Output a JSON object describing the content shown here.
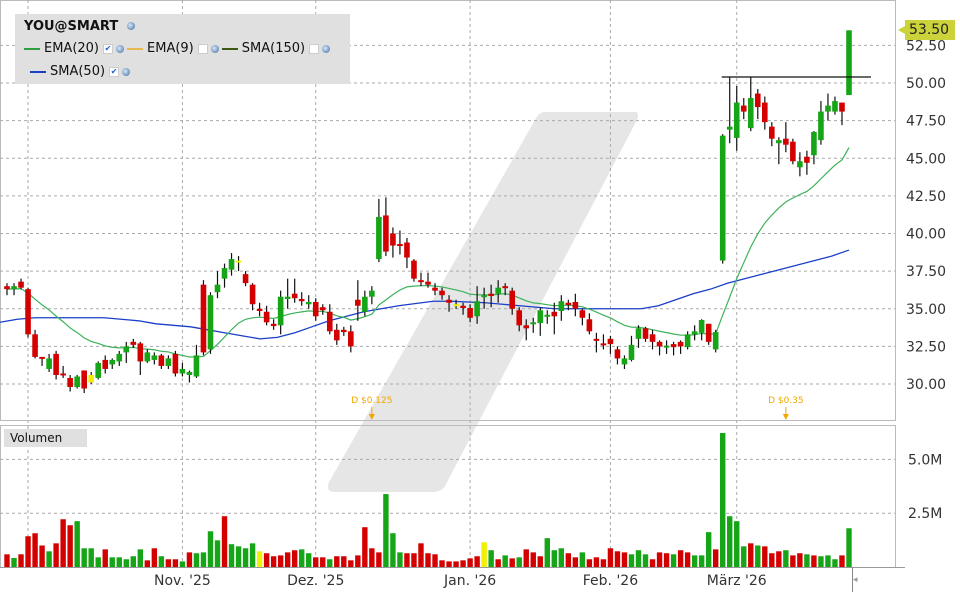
{
  "symbol": "YOU@SMART",
  "legend": [
    {
      "label": "EMA(20)",
      "color": "#2ea043",
      "checked": true
    },
    {
      "label": "EMA(9)",
      "color": "#e8b850",
      "checked": false
    },
    {
      "label": "SMA(150)",
      "color": "#3a5a10",
      "checked": false
    },
    {
      "label": "SMA(50)",
      "color": "#1a3fc8",
      "checked": true
    }
  ],
  "volume_label": "Volumen",
  "last_price_label": "53.50",
  "colors": {
    "up": "#16a516",
    "down": "#d40000",
    "neutral": "#f0f000",
    "ema20": "#3cb25a",
    "sma50": "#1a3fc8",
    "dividend": "#f0a800"
  },
  "chart_data": {
    "type": "candlestick",
    "price_axis": {
      "ylim": [
        28,
        56
      ],
      "ticks": [
        "30.00",
        "32.50",
        "35.00",
        "37.50",
        "40.00",
        "42.50",
        "45.00",
        "47.50",
        "50.00",
        "52.50"
      ],
      "grid": true
    },
    "volume_axis": {
      "ylim": [
        0,
        6.6
      ],
      "ticks": [
        "2.5M",
        "5.0M"
      ],
      "unit": "M"
    },
    "x_tick_labels": [
      "Nov. '25",
      "Dez. '25",
      "Jan. '26",
      "Feb. '26",
      "März '26"
    ],
    "ohlc": [
      [
        36.5,
        36.7,
        35.9,
        36.3
      ],
      [
        36.3,
        36.7,
        35.9,
        36.5
      ],
      [
        36.8,
        37.0,
        36.3,
        36.4
      ],
      [
        36.3,
        36.4,
        33.1,
        33.3
      ],
      [
        33.3,
        33.6,
        31.7,
        31.8
      ],
      [
        31.8,
        31.8,
        31.2,
        31.7
      ],
      [
        31.0,
        32.0,
        30.8,
        31.7
      ],
      [
        32.0,
        32.2,
        30.3,
        30.6
      ],
      [
        30.7,
        31.2,
        30.4,
        30.6
      ],
      [
        30.4,
        30.6,
        29.5,
        29.8
      ],
      [
        29.8,
        30.6,
        29.7,
        30.5
      ],
      [
        30.9,
        30.9,
        29.4,
        29.7
      ],
      [
        30.1,
        30.8,
        30.0,
        30.6
      ],
      [
        30.4,
        31.5,
        30.3,
        31.4
      ],
      [
        31.6,
        31.9,
        30.7,
        31.0
      ],
      [
        31.3,
        31.7,
        31.0,
        31.6
      ],
      [
        31.5,
        32.2,
        31.2,
        32.0
      ],
      [
        32.1,
        32.8,
        31.4,
        32.5
      ],
      [
        32.8,
        33.0,
        32.4,
        32.6
      ],
      [
        32.7,
        32.8,
        30.6,
        31.5
      ],
      [
        31.5,
        32.3,
        31.4,
        32.1
      ],
      [
        31.6,
        32.1,
        31.3,
        31.9
      ],
      [
        31.9,
        32.0,
        31.0,
        31.2
      ],
      [
        31.2,
        31.9,
        31.0,
        31.7
      ],
      [
        32.0,
        32.2,
        30.5,
        30.7
      ],
      [
        30.7,
        31.4,
        30.5,
        31.0
      ],
      [
        30.6,
        30.9,
        30.1,
        30.8
      ],
      [
        30.5,
        32.6,
        30.4,
        31.9
      ],
      [
        36.6,
        36.9,
        31.9,
        32.1
      ],
      [
        32.3,
        36.1,
        32.0,
        35.9
      ],
      [
        36.1,
        37.5,
        35.7,
        36.6
      ],
      [
        37.0,
        38.0,
        36.4,
        37.7
      ],
      [
        37.6,
        38.7,
        37.2,
        38.3
      ],
      [
        38.2,
        38.5,
        37.5,
        38.2
      ],
      [
        37.3,
        37.5,
        36.5,
        36.7
      ],
      [
        36.6,
        36.7,
        34.9,
        35.3
      ],
      [
        35.0,
        35.4,
        34.5,
        34.85
      ],
      [
        34.8,
        35.2,
        33.9,
        34.1
      ],
      [
        34.0,
        34.3,
        33.6,
        33.85
      ],
      [
        33.9,
        36.2,
        33.3,
        35.8
      ],
      [
        35.65,
        37.0,
        35.0,
        35.8
      ],
      [
        36.0,
        37.0,
        35.4,
        35.7
      ],
      [
        35.65,
        36.1,
        35.2,
        35.5
      ],
      [
        35.3,
        35.9,
        35.0,
        35.45
      ],
      [
        35.45,
        35.7,
        34.2,
        34.5
      ],
      [
        35.1,
        35.3,
        34.6,
        34.9
      ],
      [
        34.8,
        35.3,
        33.3,
        33.5
      ],
      [
        33.6,
        34.0,
        32.6,
        32.9
      ],
      [
        33.6,
        33.8,
        33.2,
        33.45
      ],
      [
        33.5,
        33.9,
        32.1,
        32.5
      ],
      [
        35.6,
        36.9,
        34.2,
        35.2
      ],
      [
        34.8,
        36.2,
        34.5,
        35.8
      ],
      [
        35.8,
        36.5,
        35.3,
        36.2
      ],
      [
        38.3,
        42.3,
        38.1,
        41.1
      ],
      [
        41.2,
        42.4,
        38.5,
        38.8
      ],
      [
        40.0,
        40.4,
        38.4,
        39.2
      ],
      [
        39.3,
        40.2,
        38.6,
        39.2
      ],
      [
        39.4,
        39.7,
        37.7,
        38.4
      ],
      [
        38.2,
        38.3,
        36.8,
        37.0
      ],
      [
        36.9,
        37.4,
        36.5,
        36.8
      ],
      [
        36.8,
        37.4,
        36.4,
        36.6
      ],
      [
        36.4,
        36.7,
        35.9,
        36.2
      ],
      [
        36.2,
        36.4,
        35.6,
        35.9
      ],
      [
        35.6,
        35.9,
        34.8,
        35.4
      ],
      [
        35.3,
        35.6,
        35.0,
        35.3
      ],
      [
        35.2,
        35.4,
        34.6,
        35.05
      ],
      [
        35.05,
        35.3,
        34.1,
        34.4
      ],
      [
        34.5,
        36.5,
        34.0,
        35.5
      ],
      [
        35.8,
        36.4,
        35.0,
        35.9
      ],
      [
        36.0,
        36.6,
        35.1,
        35.85
      ],
      [
        36.0,
        36.9,
        35.4,
        36.4
      ],
      [
        36.5,
        36.7,
        35.9,
        36.4
      ],
      [
        36.2,
        36.4,
        34.6,
        35.0
      ],
      [
        34.9,
        35.1,
        33.5,
        33.9
      ],
      [
        33.9,
        34.3,
        32.9,
        33.7
      ],
      [
        34.0,
        34.4,
        33.4,
        34.1
      ],
      [
        34.05,
        35.1,
        33.2,
        34.9
      ],
      [
        34.5,
        34.9,
        34.0,
        34.6
      ],
      [
        34.8,
        35.4,
        33.3,
        34.5
      ],
      [
        34.85,
        35.9,
        34.2,
        35.5
      ],
      [
        35.4,
        35.6,
        34.9,
        35.25
      ],
      [
        35.45,
        36.0,
        34.5,
        35.0
      ],
      [
        34.9,
        35.0,
        33.9,
        34.4
      ],
      [
        34.3,
        34.7,
        33.3,
        33.5
      ],
      [
        33.0,
        33.4,
        32.1,
        32.9
      ],
      [
        32.7,
        33.3,
        32.3,
        32.6
      ],
      [
        33.0,
        33.2,
        32.0,
        32.65
      ],
      [
        32.3,
        32.5,
        31.3,
        31.7
      ],
      [
        31.3,
        31.9,
        31.0,
        31.7
      ],
      [
        31.6,
        33.2,
        31.5,
        32.6
      ],
      [
        33.0,
        33.9,
        32.4,
        33.7
      ],
      [
        33.7,
        33.8,
        32.8,
        33.0
      ],
      [
        33.3,
        33.6,
        32.3,
        32.8
      ],
      [
        32.8,
        32.9,
        31.9,
        32.5
      ],
      [
        32.45,
        32.9,
        32.0,
        32.55
      ],
      [
        32.65,
        32.8,
        31.9,
        32.45
      ],
      [
        32.8,
        32.9,
        32.0,
        32.5
      ],
      [
        32.45,
        33.5,
        32.3,
        33.3
      ],
      [
        33.3,
        33.9,
        32.9,
        33.5
      ],
      [
        33.4,
        34.3,
        32.9,
        34.25
      ],
      [
        34.0,
        34.0,
        32.6,
        32.8
      ],
      [
        32.3,
        33.6,
        32.1,
        33.45
      ],
      [
        38.2,
        46.6,
        38.0,
        46.5
      ],
      [
        46.9,
        50.4,
        46.0,
        47.1
      ],
      [
        46.35,
        49.8,
        45.5,
        48.7
      ],
      [
        48.5,
        49.0,
        47.6,
        48.1
      ],
      [
        47.0,
        50.4,
        46.8,
        49.0
      ],
      [
        49.3,
        49.6,
        47.6,
        48.4
      ],
      [
        48.7,
        49.1,
        46.9,
        47.4
      ],
      [
        47.1,
        47.4,
        45.8,
        46.3
      ],
      [
        46.0,
        46.4,
        44.6,
        46.2
      ],
      [
        46.3,
        47.4,
        45.4,
        45.9
      ],
      [
        46.1,
        46.3,
        44.6,
        44.8
      ],
      [
        44.4,
        45.4,
        43.8,
        44.8
      ],
      [
        45.1,
        45.5,
        43.9,
        44.7
      ],
      [
        45.2,
        46.8,
        44.6,
        46.75
      ],
      [
        46.2,
        48.8,
        45.9,
        48.1
      ],
      [
        48.1,
        49.3,
        47.5,
        48.5
      ],
      [
        48.1,
        49.1,
        47.9,
        48.8
      ],
      [
        48.7,
        48.7,
        47.2,
        48.1
      ],
      [
        49.2,
        53.5,
        49.2,
        53.5
      ]
    ],
    "neutral_candles": [
      12,
      33,
      64
    ],
    "volume": [
      0.59,
      0.42,
      0.59,
      1.43,
      1.57,
      1.0,
      0.73,
      1.1,
      2.22,
      1.94,
      2.13,
      0.87,
      0.87,
      0.45,
      0.82,
      0.45,
      0.45,
      0.36,
      0.5,
      0.82,
      0.31,
      0.87,
      0.5,
      0.36,
      0.36,
      0.26,
      0.68,
      0.64,
      0.68,
      1.66,
      1.24,
      2.36,
      1.06,
      0.96,
      0.87,
      1.1,
      0.73,
      0.64,
      0.5,
      0.54,
      0.68,
      0.78,
      0.82,
      0.64,
      0.45,
      0.45,
      0.36,
      0.5,
      0.5,
      0.31,
      0.54,
      1.85,
      0.87,
      0.68,
      3.39,
      1.57,
      0.68,
      0.64,
      0.64,
      1.1,
      0.64,
      0.59,
      0.31,
      0.26,
      0.26,
      0.31,
      0.4,
      0.5,
      1.15,
      0.78,
      0.36,
      0.54,
      0.4,
      0.45,
      0.82,
      0.68,
      0.5,
      1.34,
      0.78,
      0.87,
      0.64,
      0.45,
      0.68,
      0.36,
      0.45,
      0.36,
      0.87,
      0.73,
      0.68,
      0.59,
      0.78,
      0.59,
      0.36,
      0.68,
      0.64,
      0.59,
      0.78,
      0.68,
      0.54,
      0.54,
      1.62,
      0.82,
      6.23,
      2.36,
      2.13,
      0.96,
      1.1,
      1.0,
      0.96,
      0.64,
      0.73,
      0.78,
      0.54,
      0.64,
      0.59,
      0.54,
      0.5,
      0.54,
      0.36,
      0.54,
      1.8
    ],
    "volume_colors": "rgrrrrgrrrggggrgggggrrgrrgrggggrggggyrrrrrggrrgrrrrrrrgggrrrrrrrrrrrygrgrgrrrgggrrgrrrrrrgggrrrgrrgggrggggrgrrrgrrgrgggrg",
    "sma50": [
      34.1,
      34.3,
      34.4,
      34.4,
      34.4,
      34.4,
      34.4,
      34.3,
      34.2,
      34.0,
      33.9,
      33.8,
      33.6,
      33.4,
      33.2,
      33.0,
      33.1,
      33.4,
      33.8,
      34.2,
      34.5,
      34.8,
      35.0,
      35.2,
      35.35,
      35.5,
      35.5,
      35.45,
      35.4,
      35.3,
      35.2,
      35.1,
      35.0,
      35.0,
      35.0,
      35.0,
      35.0,
      35.0,
      35.2,
      35.6,
      36.0,
      36.3,
      36.7,
      37.0,
      37.3,
      37.6,
      37.9,
      38.2,
      38.5,
      38.9
    ],
    "resistance": {
      "value": 50.4,
      "from_index": 102,
      "extends_past_last": true
    },
    "dividends": [
      {
        "index": 52,
        "label": "D $0.125"
      },
      {
        "index": 111,
        "label": "D $0.35"
      }
    ],
    "month_start_indices": [
      25,
      44,
      66,
      86,
      104
    ]
  }
}
